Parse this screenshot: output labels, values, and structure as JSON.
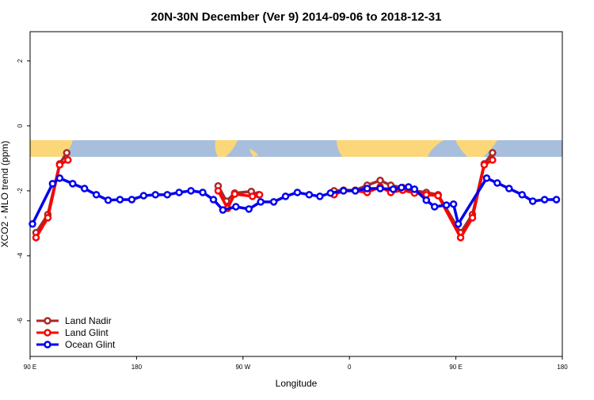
{
  "chart_data": {
    "type": "line",
    "title": "20N-30N December (Ver 9)   2014-09-06 to 2018-12-31",
    "x_label": "Longitude",
    "y_label": "XCO2 - MLO trend (ppm)",
    "xlim": [
      90,
      540
    ],
    "ylim": [
      -7.1,
      2.9
    ],
    "xticks": [
      {
        "value": 90,
        "label": "90 E"
      },
      {
        "value": 180,
        "label": "180"
      },
      {
        "value": 270,
        "label": "90 W"
      },
      {
        "value": 360,
        "label": "0"
      },
      {
        "value": 450,
        "label": "90 E"
      },
      {
        "value": 540,
        "label": "180"
      }
    ],
    "yticks": [
      -6,
      -4,
      -2,
      0,
      2
    ],
    "legend": "bottom-left",
    "series": [
      {
        "name": "Land Nadir",
        "color": "#a52a2a",
        "x": [
          95,
          105,
          115,
          121,
          null,
          249,
          256,
          263,
          277,
          283,
          null,
          347,
          355,
          365,
          375,
          386,
          395,
          405,
          415,
          425,
          435,
          454,
          464,
          474,
          481
        ],
        "values": [
          -3.29,
          -2.73,
          -1.17,
          -0.83,
          null,
          -1.85,
          -2.32,
          -2.07,
          -2.02,
          -2.12,
          null,
          -2.0,
          -1.98,
          -1.98,
          -1.83,
          -1.68,
          -1.83,
          -1.9,
          -2.0,
          -2.05,
          -2.12,
          -3.29,
          -2.73,
          -1.17,
          -0.83
        ]
      },
      {
        "name": "Land Glint",
        "color": "#ff0000",
        "x": [
          95,
          105,
          115,
          122,
          null,
          249,
          257,
          263,
          278,
          284,
          null,
          347,
          355,
          365,
          375,
          386,
          395,
          405,
          415,
          425,
          435,
          454,
          464,
          474,
          481
        ],
        "values": [
          -3.44,
          -2.83,
          -1.2,
          -1.05,
          null,
          -2.0,
          -2.54,
          -2.1,
          -2.17,
          -2.12,
          null,
          -2.12,
          -2.0,
          -2.0,
          -2.05,
          -1.88,
          -2.05,
          -1.98,
          -2.07,
          -2.12,
          -2.15,
          -3.44,
          -2.83,
          -1.2,
          -1.05
        ]
      },
      {
        "name": "Ocean Glint",
        "color": "#0000ee",
        "x": [
          92,
          109,
          115,
          126,
          136,
          146,
          156,
          166,
          176,
          186,
          196,
          206,
          216,
          226,
          236,
          245,
          253,
          264,
          275,
          285,
          296,
          306,
          316,
          326,
          335,
          344,
          355,
          365,
          375,
          386,
          397,
          404,
          410,
          415,
          425,
          432,
          442,
          448,
          452,
          476,
          485,
          495,
          506,
          515,
          525,
          535
        ],
        "values": [
          -3.02,
          -1.78,
          -1.61,
          -1.78,
          -1.93,
          -2.12,
          -2.29,
          -2.27,
          -2.27,
          -2.15,
          -2.12,
          -2.12,
          -2.05,
          -2.0,
          -2.05,
          -2.27,
          -2.59,
          -2.49,
          -2.56,
          -2.34,
          -2.34,
          -2.17,
          -2.05,
          -2.12,
          -2.17,
          -2.07,
          -2.0,
          -2.0,
          -1.93,
          -1.93,
          -1.95,
          -1.9,
          -1.88,
          -1.95,
          -2.29,
          -2.49,
          -2.44,
          -2.41,
          -3.02,
          -1.61,
          -1.76,
          -1.93,
          -2.12,
          -2.32,
          -2.27,
          -2.27
        ]
      }
    ]
  }
}
